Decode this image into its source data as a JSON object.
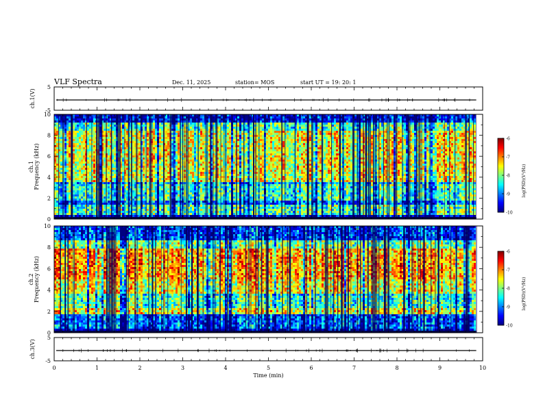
{
  "header": {
    "title": "VLF Spectra",
    "date": "Dec. 11, 2025",
    "station": "station= MOS",
    "start": "start  UT =   19: 20: 1"
  },
  "chart_data": {
    "type": "heatmap",
    "title": "VLF Spectra",
    "xlabel": "Time  (min)",
    "xlim": [
      0,
      10
    ],
    "x_ticks": [
      "0",
      "1",
      "2",
      "3",
      "4",
      "5",
      "6",
      "7",
      "8",
      "9",
      "10"
    ],
    "panels": [
      {
        "name": "ch.1(V)",
        "kind": "waveform",
        "ylim": [
          -5,
          5
        ],
        "y_ticks": [
          "5",
          "-5"
        ],
        "ylabel": "ch.1(V)"
      },
      {
        "name": "ch.1 spectrogram",
        "kind": "spectrogram",
        "ylim": [
          0,
          10
        ],
        "y_ticks": [
          "0",
          "2",
          "4",
          "6",
          "8",
          "10"
        ],
        "ylabel_line1": "ch.1",
        "ylabel_line2": "Frequency (kHz)"
      },
      {
        "name": "ch.2 spectrogram",
        "kind": "spectrogram",
        "ylim": [
          0,
          10
        ],
        "y_ticks": [
          "0",
          "2",
          "4",
          "6",
          "8",
          "10"
        ],
        "ylabel_line1": "ch.2",
        "ylabel_line2": "Frequency (kHz)"
      },
      {
        "name": "ch.3(V)",
        "kind": "waveform",
        "ylim": [
          -5,
          5
        ],
        "y_ticks": [
          "5",
          "-5"
        ],
        "ylabel": "ch.3(V)"
      }
    ],
    "colorbar": {
      "label": "log(PSD)(V²/Hz)",
      "range": [
        -10,
        -6
      ],
      "ticks": [
        "-6",
        "-7",
        "-8",
        "-9",
        "-10"
      ]
    },
    "data_end_min": 9.85
  }
}
